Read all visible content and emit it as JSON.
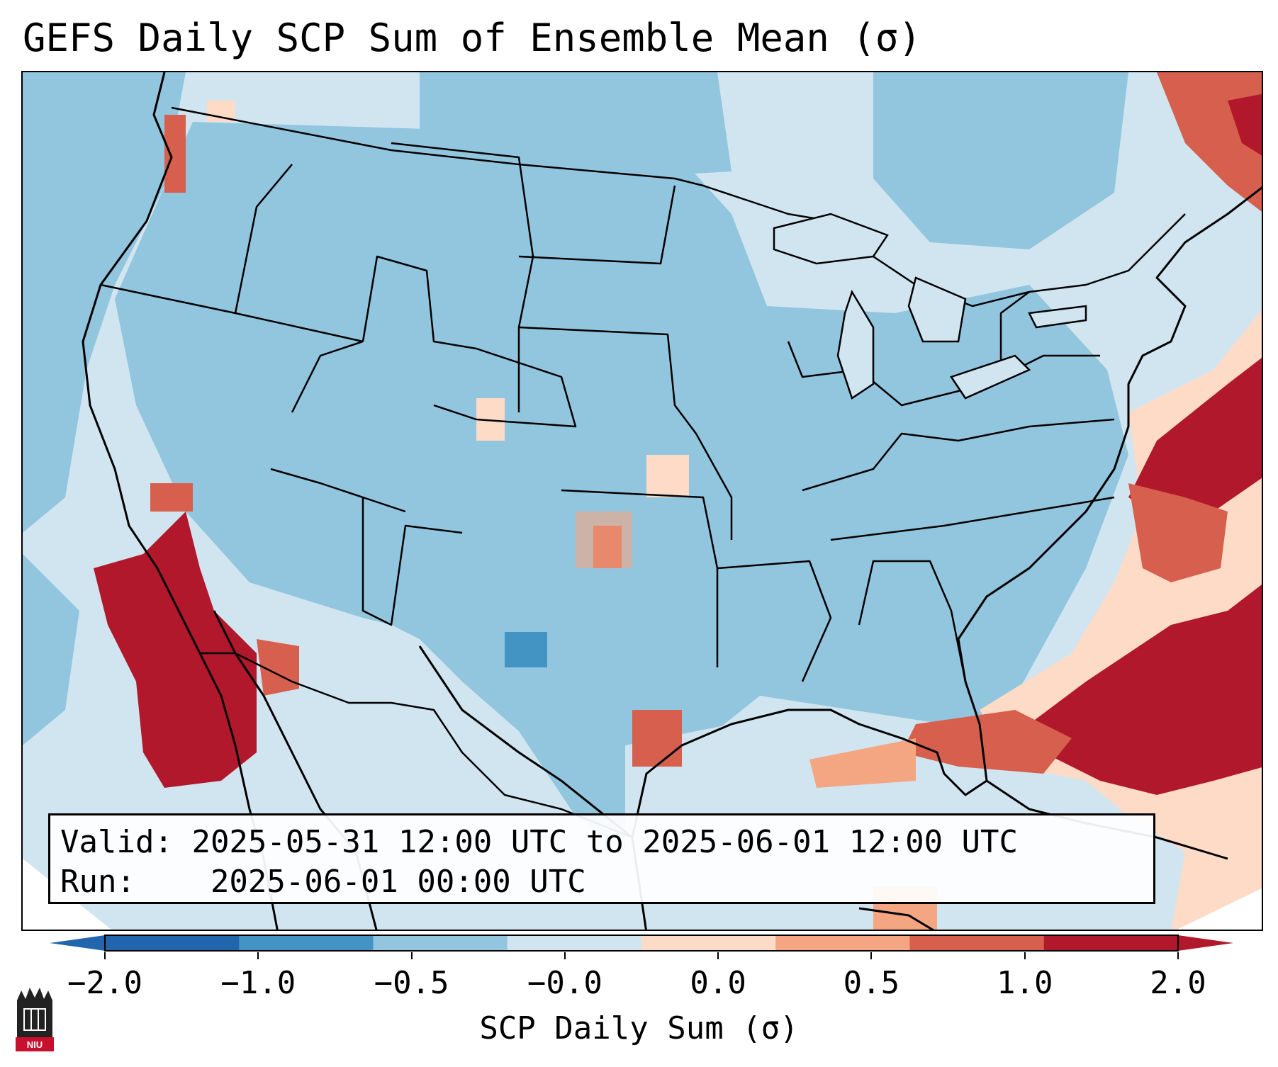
{
  "title": "GEFS Daily SCP Sum of Ensemble Mean (σ)",
  "info": {
    "valid_label": "Valid:",
    "valid_value": "2025-05-31 12:00 UTC to 2025-06-01 12:00 UTC",
    "run_label": "Run:",
    "run_value": "2025-06-01 00:00 UTC"
  },
  "colorbar": {
    "label": "SCP Daily Sum (σ)",
    "ticks": [
      "−2.0",
      "−1.0",
      "−0.5",
      "−0.0",
      "0.0",
      "0.5",
      "1.0",
      "2.0"
    ],
    "colors": [
      "#2166ac",
      "#4393c3",
      "#92c5de",
      "#d1e5f0",
      "#fddbc7",
      "#f4a582",
      "#d6604d",
      "#b2182b"
    ],
    "extend_low_color": "#2166ac",
    "extend_high_color": "#b2182b"
  },
  "logo": {
    "text": "NIU"
  },
  "map": {
    "region": "Contiguous United States",
    "field": "SCP daily sum anomaly"
  }
}
